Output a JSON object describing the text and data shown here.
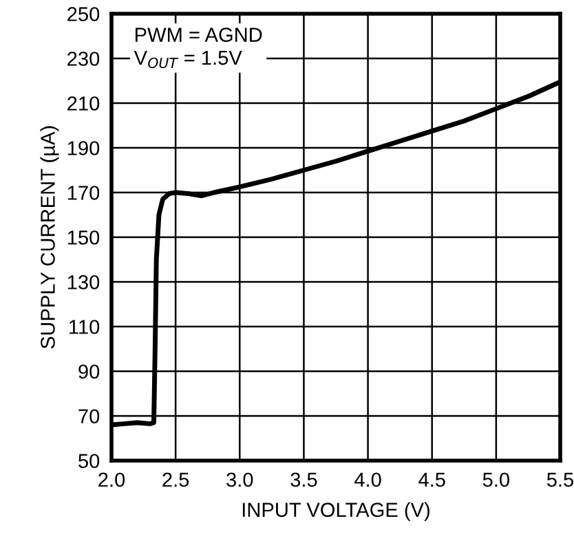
{
  "chart_data": {
    "type": "line",
    "xlabel": "INPUT VOLTAGE (V)",
    "ylabel": "SUPPLY CURRENT (µA)",
    "annotations": [
      "PWM = AGND",
      "V$_{OUT}$ = 1.5V"
    ],
    "series": [
      {
        "color": "#000000",
        "x": [
          2.0,
          2.1,
          2.2,
          2.3,
          2.33,
          2.34,
          2.35,
          2.37,
          2.4,
          2.45,
          2.5,
          2.6,
          2.7,
          2.8,
          3.0,
          3.25,
          3.5,
          3.75,
          4.0,
          4.25,
          4.5,
          4.75,
          5.0,
          5.25,
          5.5
        ],
        "values": [
          66,
          66.5,
          67,
          66.5,
          67,
          100,
          140,
          160,
          167,
          169.5,
          170,
          169.5,
          168.5,
          170,
          172.5,
          176,
          180,
          184,
          188.5,
          193,
          197.5,
          202,
          207.5,
          213,
          219.5
        ]
      }
    ],
    "xlim": [
      2.0,
      5.5
    ],
    "xticks": [
      {
        "value": 2.0,
        "label": "2.0"
      },
      {
        "value": 2.5,
        "label": "2.5"
      },
      {
        "value": 3.0,
        "label": "3.0"
      },
      {
        "value": 3.5,
        "label": "3.5"
      },
      {
        "value": 4.0,
        "label": "4.0"
      },
      {
        "value": 4.5,
        "label": "4.5"
      },
      {
        "value": 5.0,
        "label": "5.0"
      },
      {
        "value": 5.5,
        "label": "5.5"
      }
    ],
    "ylim": [
      50,
      250
    ],
    "yticks": [
      50,
      70,
      90,
      110,
      130,
      150,
      170,
      190,
      210,
      230,
      250
    ],
    "grid": true,
    "legend": false,
    "marker": "none",
    "line_style": "solid"
  }
}
